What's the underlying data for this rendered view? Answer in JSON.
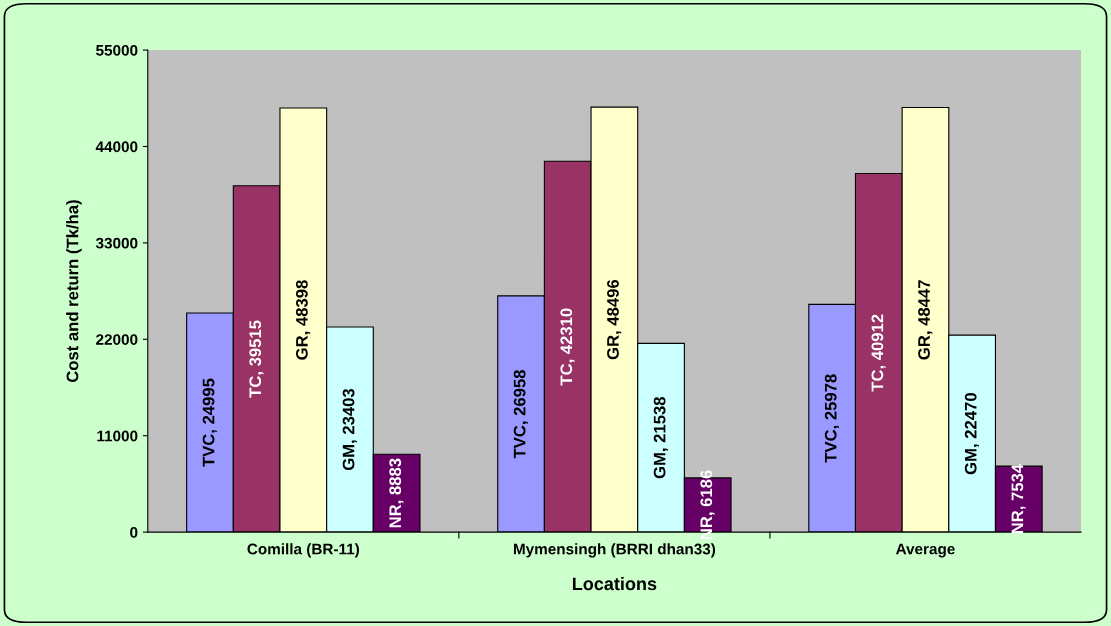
{
  "chart_data": {
    "type": "bar",
    "xlabel": "Locations",
    "ylabel": "Cost and return (Tk/ha)",
    "categories": [
      "Comilla (BR-11)",
      "Mymensingh (BRRI dhan33)",
      "Average"
    ],
    "series": [
      {
        "color": "#9999ff",
        "values": [
          24995,
          26958,
          25978
        ],
        "value_labels": [
          "TVC, 24995",
          "TVC, 26958",
          "TVC, 25978"
        ]
      },
      {
        "color": "#993366",
        "values": [
          39515,
          42310,
          40912
        ],
        "value_labels": [
          "TC, 39515",
          "TC, 42310",
          "TC, 40912"
        ]
      },
      {
        "color": "#ffffcc",
        "values": [
          48398,
          48496,
          48447
        ],
        "value_labels": [
          "GR, 48398",
          "GR, 48496",
          "GR, 48447"
        ]
      },
      {
        "color": "#ccffff",
        "values": [
          23403,
          21538,
          22470
        ],
        "value_labels": [
          "GM, 23403",
          "GM, 21538",
          "GM, 22470"
        ]
      },
      {
        "color": "#660066",
        "values": [
          8883,
          6186,
          7534
        ],
        "value_labels": [
          "NR, 8883",
          "NR, 6186",
          "NR, 7534"
        ]
      }
    ],
    "ylim": [
      0,
      55000
    ],
    "yticks": [
      0,
      11000,
      22000,
      33000,
      44000,
      55000
    ],
    "grid": false,
    "legend": false
  }
}
